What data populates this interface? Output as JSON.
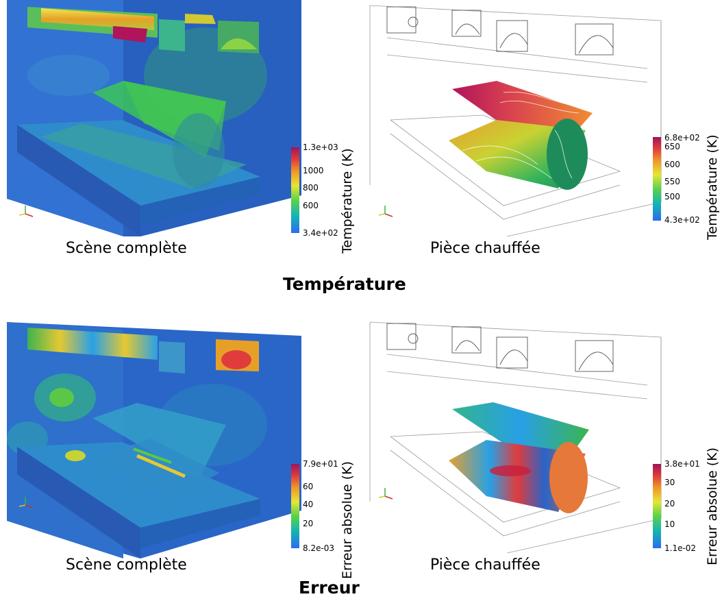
{
  "sections": {
    "temperature_title": "Température",
    "error_title": "Erreur"
  },
  "panels": {
    "top_left": {
      "caption": "Scène complète",
      "colorbar_title": "Température (K)",
      "ticks": [
        "1.3e+03",
        "1000",
        "800",
        "600",
        "3.4e+02"
      ]
    },
    "top_right": {
      "caption": "Pièce chauffée",
      "colorbar_title": "Température (K)",
      "ticks": [
        "6.8e+02",
        "650",
        "600",
        "550",
        "500",
        "4.3e+02"
      ]
    },
    "bottom_left": {
      "caption": "Scène complète",
      "colorbar_title": "Erreur absolue (K)",
      "ticks": [
        "7.9e+01",
        "60",
        "40",
        "20",
        "8.2e-03"
      ]
    },
    "bottom_right": {
      "caption": "Pièce chauffée",
      "colorbar_title": "Erreur absolue (K)",
      "ticks": [
        "3.8e+01",
        "30",
        "20",
        "10",
        "1.1e-02"
      ]
    }
  },
  "colors": {
    "scene_blue": "#2a64c8",
    "colormap": [
      "#2b6cf0",
      "#14b4b4",
      "#5ad24a",
      "#e6e632",
      "#f09628",
      "#e03c3c",
      "#a0145a"
    ]
  }
}
